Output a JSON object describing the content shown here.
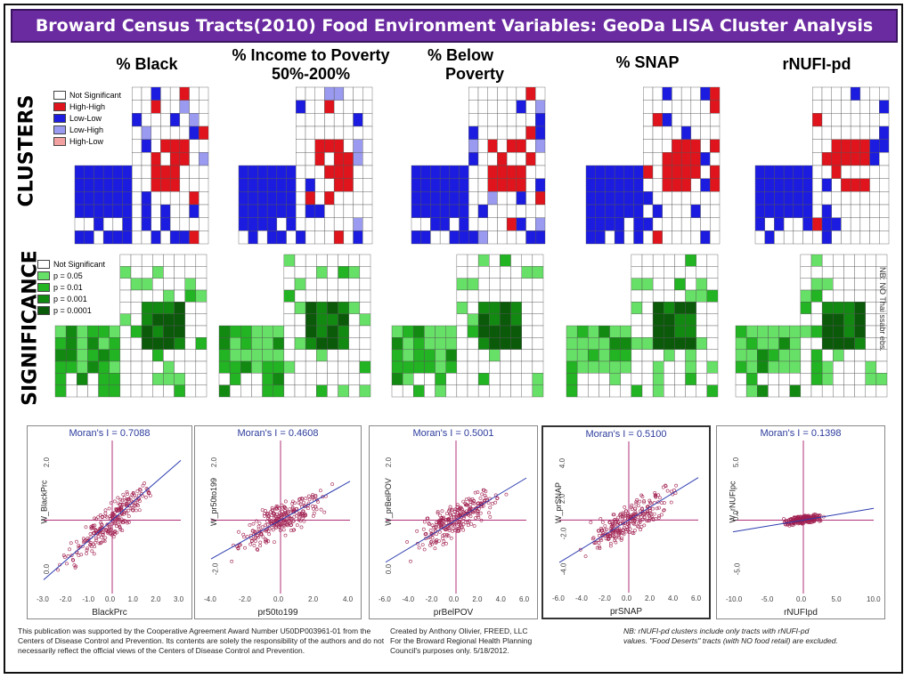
{
  "title": "Broward Census Tracts(2010) Food Environment Variables: GeoDa LISA Cluster Analysis",
  "columns": [
    {
      "label_line1": "% Black",
      "label_line2": ""
    },
    {
      "label_line1": "% Income to Poverty",
      "label_line2": "50%-200%"
    },
    {
      "label_line1": "% Below",
      "label_line2": "Poverty"
    },
    {
      "label_line1": "% SNAP",
      "label_line2": ""
    },
    {
      "label_line1": "rNUFI-pd",
      "label_line2": ""
    }
  ],
  "rows": {
    "clusters": "CLUSTERS",
    "significance": "SIGNIFICANCE"
  },
  "cluster_legend": [
    {
      "label": "Not Significant",
      "color": "#ffffff"
    },
    {
      "label": "High-High",
      "color": "#e0141c"
    },
    {
      "label": "Low-Low",
      "color": "#1c1ce0"
    },
    {
      "label": "Low-High",
      "color": "#9a9af0"
    },
    {
      "label": "High-Low",
      "color": "#f2a0a0"
    }
  ],
  "significance_legend": [
    {
      "label": "Not Significant",
      "color": "#ffffff"
    },
    {
      "label": "p = 0.05",
      "color": "#66e066"
    },
    {
      "label": "p = 0.01",
      "color": "#22b422"
    },
    {
      "label": "p = 0.001",
      "color": "#128a12"
    },
    {
      "label": "p = 0.0001",
      "color": "#0a5a0a"
    }
  ],
  "scatter": [
    {
      "moran": "Moran's I = 0.7088",
      "xlabel": "BlackPrc",
      "ylabel": "W_BlackPrc",
      "xticks": [
        "-3.0",
        "-2.0",
        "-1.0",
        "0.0",
        "1.0",
        "2.0",
        "3.0"
      ],
      "yticks": [
        "2.0",
        "0.0"
      ]
    },
    {
      "moran": "Moran's I = 0.4608",
      "xlabel": "pr50to199",
      "ylabel": "W_pr50to199",
      "xticks": [
        "-4.0",
        "-2.0",
        "0.0",
        "2.0",
        "4.0"
      ],
      "yticks": [
        "2.0",
        "-2.0"
      ]
    },
    {
      "moran": "Moran's I = 0.5001",
      "xlabel": "prBelPOV",
      "ylabel": "W_prBelPOV",
      "xticks": [
        "-6.0",
        "-4.0",
        "-2.0",
        "0.0",
        "2.0",
        "4.0",
        "6.0"
      ],
      "yticks": [
        "2.0",
        "0.0"
      ]
    },
    {
      "moran": "Moran's I = 0.5100",
      "xlabel": "prSNAP",
      "ylabel": "W_prSNAP",
      "xticks": [
        "-6.0",
        "-4.0",
        "-2.0",
        "0.0",
        "2.0",
        "4.0",
        "6.0"
      ],
      "yticks": [
        "4.0",
        "2.0",
        "-2.0",
        "-4.0"
      ]
    },
    {
      "moran": "Moran's I = 0.1398",
      "xlabel": "rNUFIpd",
      "ylabel": "W_rNUFIpc",
      "xticks": [
        "-10.0",
        "-5.0",
        "0.0",
        "5.0",
        "10.0"
      ],
      "yticks": [
        "5.0",
        "0.0",
        "-5.0"
      ]
    }
  ],
  "side_note": "NB: NO Thai ssabr ebs.",
  "footer": {
    "funding_line1": "This publication was supported by the Cooperative Agreement Award Number U50DP003961-01 from the",
    "funding_line2": "Centers of Disease Control and Prevention. Its contents are solely the responsibility of the authors and do not",
    "funding_line3": "necessarily reflect the official views of the Centers of Disease Control and Prevention.",
    "credit_line1": "Created by Anthony Olivier, FREED, LLC",
    "credit_line2": "For the Broward Regional Health Planning",
    "credit_line3": "Council's purposes only. 5/18/2012.",
    "note_line1": "NB: rNUFI-pd clusters include only tracts with rNUFI-pd",
    "note_line2": "values. \"Food Deserts\" tracts (with NO food retail) are excluded."
  }
}
